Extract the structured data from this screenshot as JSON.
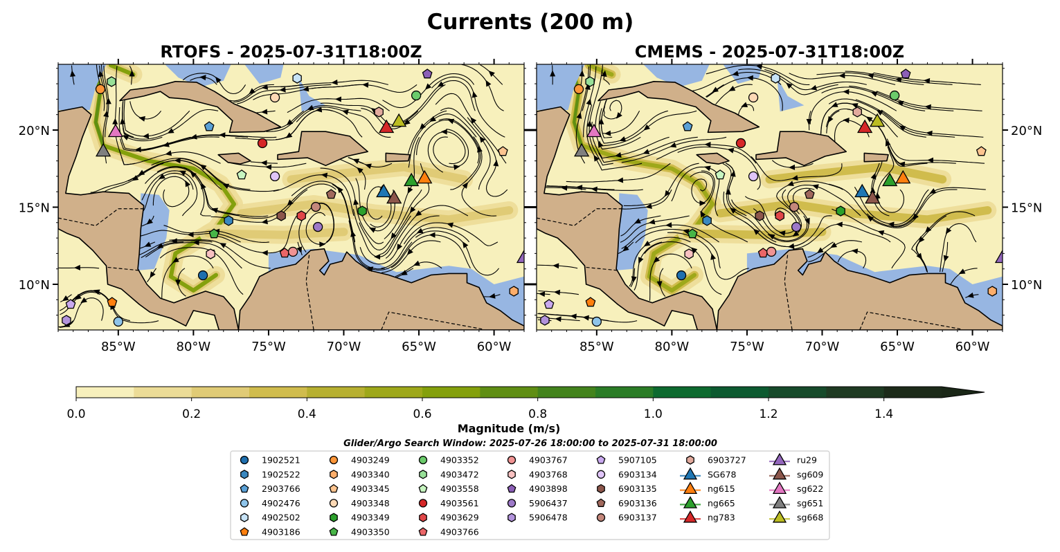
{
  "figure": {
    "title": "Currents (200 m)",
    "panels": [
      {
        "title": "RTOFS - 2025-07-31T18:00Z",
        "model": "RTOFS",
        "seed": 1
      },
      {
        "title": "CMEMS - 2025-07-31T18:00Z",
        "model": "CMEMS",
        "seed": 2
      }
    ],
    "extent": {
      "lon": [
        -89.0,
        -58.0
      ],
      "lat": [
        7.04,
        24.26
      ]
    },
    "lon_ticks": [
      {
        "value": -85,
        "label": "85°W"
      },
      {
        "value": -80,
        "label": "80°W"
      },
      {
        "value": -75,
        "label": "75°W"
      },
      {
        "value": -70,
        "label": "70°W"
      },
      {
        "value": -65,
        "label": "65°W"
      },
      {
        "value": -60,
        "label": "60°W"
      }
    ],
    "lat_ticks": [
      {
        "value": 10,
        "label": "10°N"
      },
      {
        "value": 15,
        "label": "15°N"
      },
      {
        "value": 20,
        "label": "20°N"
      }
    ]
  },
  "colorbar": {
    "label": "Magnitude (m/s)",
    "min": 0.0,
    "max": 1.5,
    "extend": "max",
    "ticks": [
      {
        "value": 0.0,
        "label": "0.0"
      },
      {
        "value": 0.2,
        "label": "0.2"
      },
      {
        "value": 0.4,
        "label": "0.4"
      },
      {
        "value": 0.6,
        "label": "0.6"
      },
      {
        "value": 0.8,
        "label": "0.8"
      },
      {
        "value": 1.0,
        "label": "1.0"
      },
      {
        "value": 1.2,
        "label": "1.2"
      },
      {
        "value": 1.4,
        "label": "1.4"
      }
    ],
    "colors": [
      "#f7f0bc",
      "#ecdc97",
      "#e0cb76",
      "#d0bc4d",
      "#b7b031",
      "#9ea81a",
      "#84a00c",
      "#5f8e13",
      "#43831c",
      "#2a7c26",
      "#0d6a2f",
      "#0c5a30",
      "#164a2a",
      "#1e3a22",
      "#1c2a19"
    ],
    "extend_color": "#1a2717"
  },
  "search_window": "Glider/Argo Search Window: 2025-07-26 18:00:00 to 2025-07-31 18:00:00",
  "colors": {
    "land": "#d0b08a",
    "shallow": "#97b6e2",
    "ocean": "#f7f0bc"
  },
  "platforms": [
    {
      "id": "1902521",
      "shape": "circle",
      "color": "#1f6fae",
      "lon": -79.37,
      "lat": 10.58
    },
    {
      "id": "1902522",
      "shape": "hexagon",
      "color": "#3a88c0",
      "lon": -77.66,
      "lat": 14.13
    },
    {
      "id": "2903766",
      "shape": "pentagon",
      "color": "#5aa0d6",
      "lon": -78.95,
      "lat": 20.22
    },
    {
      "id": "4902476",
      "shape": "circle",
      "color": "#8ec4ea",
      "lon": -85.0,
      "lat": 7.58
    },
    {
      "id": "4902502",
      "shape": "hexagon",
      "color": "#c7e3f7",
      "lon": -73.1,
      "lat": 23.36
    },
    {
      "id": "4903186",
      "shape": "pentagon",
      "color": "#ff7f0e",
      "lon": -85.41,
      "lat": 8.83
    },
    {
      "id": "4903249",
      "shape": "circle",
      "color": "#fd9638",
      "lon": -86.19,
      "lat": 22.65
    },
    {
      "id": "4903340",
      "shape": "hexagon",
      "color": "#fdae6b",
      "lon": -58.68,
      "lat": 9.55
    },
    {
      "id": "4903345",
      "shape": "pentagon",
      "color": "#fdc48f",
      "lon": -59.41,
      "lat": 18.61
    },
    {
      "id": "4903348",
      "shape": "circle",
      "color": "#fdd9b5",
      "lon": -74.58,
      "lat": 22.11
    },
    {
      "id": "4903349",
      "shape": "hexagon",
      "color": "#2ca02c",
      "lon": -68.77,
      "lat": 14.75
    },
    {
      "id": "4903350",
      "shape": "pentagon",
      "color": "#47b547",
      "lon": -78.63,
      "lat": 13.27
    },
    {
      "id": "4903352",
      "shape": "circle",
      "color": "#6bcb6b",
      "lon": -65.18,
      "lat": 22.24
    },
    {
      "id": "4903472",
      "shape": "hexagon",
      "color": "#98e098",
      "lon": -85.45,
      "lat": 23.14
    },
    {
      "id": "4903558",
      "shape": "pentagon",
      "color": "#c7f5c0",
      "lon": -76.79,
      "lat": 17.09
    },
    {
      "id": "4903561",
      "shape": "circle",
      "color": "#d62728",
      "lon": -75.41,
      "lat": 19.15
    },
    {
      "id": "4903629",
      "shape": "hexagon",
      "color": "#e04648",
      "lon": -72.82,
      "lat": 14.44
    },
    {
      "id": "4903766",
      "shape": "pentagon",
      "color": "#ea6567",
      "lon": -73.93,
      "lat": 12.02
    },
    {
      "id": "4903767",
      "shape": "circle",
      "color": "#f09393",
      "lon": -73.38,
      "lat": 12.11
    },
    {
      "id": "4903768",
      "shape": "hexagon",
      "color": "#f8c1c1",
      "lon": -78.86,
      "lat": 11.97
    },
    {
      "id": "4903898",
      "shape": "pentagon",
      "color": "#8c5fb7",
      "lon": -64.44,
      "lat": 23.63
    },
    {
      "id": "5906437",
      "shape": "circle",
      "color": "#9d79c8",
      "lon": -71.72,
      "lat": 13.72
    },
    {
      "id": "5906478",
      "shape": "hexagon",
      "color": "#b293dc",
      "lon": -88.45,
      "lat": 7.67
    },
    {
      "id": "5907105",
      "shape": "pentagon",
      "color": "#c9a9ef",
      "lon": -88.17,
      "lat": 8.7
    },
    {
      "id": "6903134",
      "shape": "circle",
      "color": "#e0c5f8",
      "lon": -74.58,
      "lat": 17.0
    },
    {
      "id": "6903135",
      "shape": "hexagon",
      "color": "#8c564b",
      "lon": -74.16,
      "lat": 14.44
    },
    {
      "id": "6903136",
      "shape": "pentagon",
      "color": "#a0685c",
      "lon": -70.84,
      "lat": 15.83
    },
    {
      "id": "6903137",
      "shape": "circle",
      "color": "#c4877b",
      "lon": -71.86,
      "lat": 15.02
    },
    {
      "id": "6903727",
      "shape": "hexagon",
      "color": "#e2aa9d",
      "lon": -67.66,
      "lat": 21.17
    },
    {
      "id": "SG678",
      "shape": "triangle",
      "color": "#1f77b4",
      "lon": -67.34,
      "lat": 16.01
    },
    {
      "id": "ng615",
      "shape": "triangle",
      "color": "#ff7f0e",
      "lon": -64.62,
      "lat": 16.9
    },
    {
      "id": "ng665",
      "shape": "triangle",
      "color": "#2ca02c",
      "lon": -65.5,
      "lat": 16.73
    },
    {
      "id": "ng783",
      "shape": "triangle",
      "color": "#d62728",
      "lon": -67.16,
      "lat": 20.18
    },
    {
      "id": "ru29",
      "shape": "triangle",
      "color": "#9467bd",
      "lon": -58.0,
      "lat": 11.75
    },
    {
      "id": "sg609",
      "shape": "triangle",
      "color": "#8c564b",
      "lon": -66.65,
      "lat": 15.6
    },
    {
      "id": "sg622",
      "shape": "triangle",
      "color": "#e377c2",
      "lon": -85.18,
      "lat": 19.91
    },
    {
      "id": "sg651",
      "shape": "triangle",
      "color": "#7f7f7f",
      "lon": -86.0,
      "lat": 18.65
    },
    {
      "id": "sg668",
      "shape": "triangle",
      "color": "#bcbd22",
      "lon": -66.33,
      "lat": 20.58
    }
  ]
}
